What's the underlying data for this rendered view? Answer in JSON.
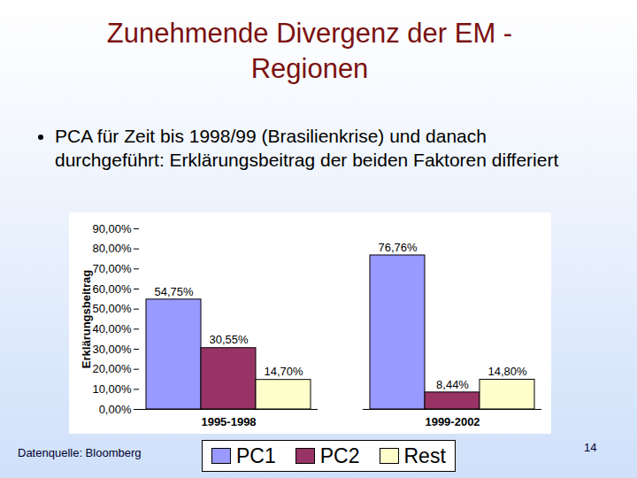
{
  "chart_data": {
    "type": "bar",
    "title": "Zunehmende Divergenz der EM - Regionen",
    "subtitle": "PCA für Zeit bis 1998/99 (Brasilienkrise) und danach durchgeführt: Erklärungsbeitrag der beiden Faktoren differiert",
    "annotations": [
      "Datenquelle: Bloomberg",
      "14"
    ],
    "ylabel": "Erklärungsbeitrag",
    "categories": [
      "1995-1998",
      "1999-2002"
    ],
    "series": [
      {
        "name": "PC1",
        "color": "#9999ff",
        "values": [
          54.75,
          76.76
        ],
        "value_labels": [
          "54,75%",
          "76,76%"
        ]
      },
      {
        "name": "PC2",
        "color": "#993366",
        "values": [
          30.55,
          8.44
        ],
        "value_labels": [
          "30,55%",
          "8,44%"
        ]
      },
      {
        "name": "Rest",
        "color": "#ffffcc",
        "values": [
          14.7,
          14.8
        ],
        "value_labels": [
          "14,70%",
          "14,80%"
        ]
      }
    ],
    "ylim": [
      0,
      90
    ],
    "yticks": [
      {
        "value": 0,
        "label": "0,00%"
      },
      {
        "value": 10,
        "label": "10,00%"
      },
      {
        "value": 20,
        "label": "20,00%"
      },
      {
        "value": 30,
        "label": "30,00%"
      },
      {
        "value": 40,
        "label": "40,00%"
      },
      {
        "value": 50,
        "label": "50,00%"
      },
      {
        "value": 60,
        "label": "60,00%"
      },
      {
        "value": 70,
        "label": "70,00%"
      },
      {
        "value": 80,
        "label": "80,00%"
      },
      {
        "value": 90,
        "label": "90,00%"
      }
    ],
    "grid": false,
    "legend": "bottom",
    "data_labels": true
  }
}
